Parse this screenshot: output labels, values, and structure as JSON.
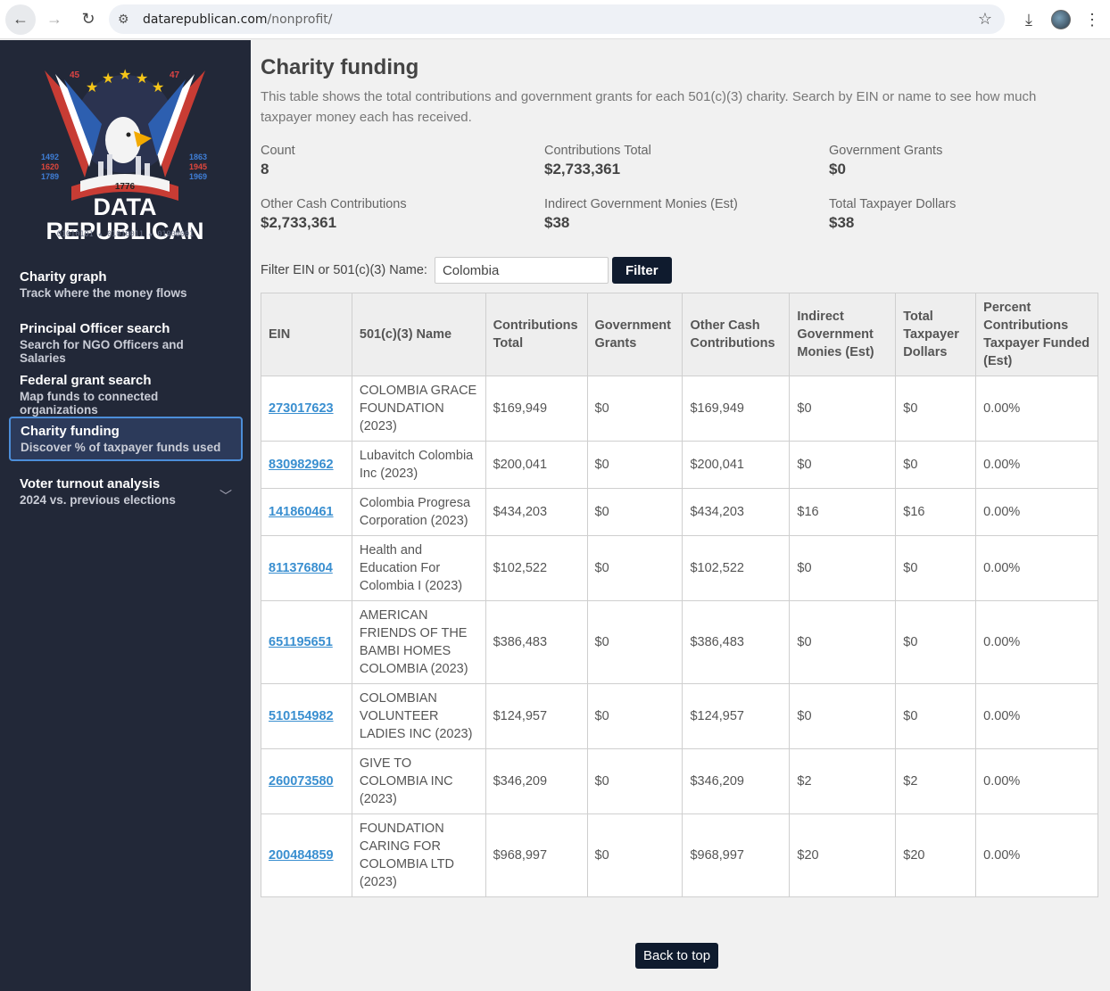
{
  "browser": {
    "url_domain": "datarepublican.com",
    "url_path": "/nonprofit/"
  },
  "logo": {
    "top_left_num": "45",
    "top_right_num": "47",
    "left_years": [
      "1492",
      "1620",
      "1789"
    ],
    "right_years": [
      "1863",
      "1945",
      "1969"
    ],
    "banner_year": "1776",
    "line1": "DATA",
    "line2": "REPUBLICAN",
    "binary": "01010101 ★ 01010011 ★ 01000001"
  },
  "sidebar": {
    "items": [
      {
        "title": "Charity graph",
        "subtitle": "Track where the money flows"
      },
      {
        "title": "Principal Officer search",
        "subtitle": "Search for NGO Officers and Salaries"
      },
      {
        "title": "Federal grant search",
        "subtitle": "Map funds to connected organizations"
      },
      {
        "title": "Charity funding",
        "subtitle": "Discover % of taxpayer funds used"
      },
      {
        "title": "Voter turnout analysis",
        "subtitle": "2024 vs. previous elections"
      }
    ]
  },
  "main": {
    "title": "Charity funding",
    "description": "This table shows the total contributions and government grants for each 501(c)(3) charity. Search by EIN or name to see how much taxpayer money each has received.",
    "stats": [
      {
        "label": "Count",
        "value": "8"
      },
      {
        "label": "Contributions Total",
        "value": "$2,733,361"
      },
      {
        "label": "Government Grants",
        "value": "$0"
      },
      {
        "label": "Other Cash Contributions",
        "value": "$2,733,361"
      },
      {
        "label": "Indirect Government Monies (Est)",
        "value": "$38"
      },
      {
        "label": "Total Taxpayer Dollars",
        "value": "$38"
      }
    ],
    "filter_label": "Filter EIN or 501(c)(3) Name:",
    "filter_value": "Colombia",
    "filter_button": "Filter",
    "back_to_top": "Back to top"
  },
  "table": {
    "headers": [
      "EIN",
      "501(c)(3) Name",
      "Contributions Total",
      "Government Grants",
      "Other Cash Contributions",
      "Indirect Government Monies (Est)",
      "Total Taxpayer Dollars",
      "Percent Contributions Taxpayer Funded (Est)"
    ],
    "rows": [
      [
        "273017623",
        "COLOMBIA GRACE FOUNDATION (2023)",
        "$169,949",
        "$0",
        "$169,949",
        "$0",
        "$0",
        "0.00%"
      ],
      [
        "830982962",
        "Lubavitch Colombia Inc (2023)",
        "$200,041",
        "$0",
        "$200,041",
        "$0",
        "$0",
        "0.00%"
      ],
      [
        "141860461",
        "Colombia Progresa Corporation (2023)",
        "$434,203",
        "$0",
        "$434,203",
        "$16",
        "$16",
        "0.00%"
      ],
      [
        "811376804",
        "Health and Education For Colombia I (2023)",
        "$102,522",
        "$0",
        "$102,522",
        "$0",
        "$0",
        "0.00%"
      ],
      [
        "651195651",
        "AMERICAN FRIENDS OF THE BAMBI HOMES COLOMBIA (2023)",
        "$386,483",
        "$0",
        "$386,483",
        "$0",
        "$0",
        "0.00%"
      ],
      [
        "510154982",
        "COLOMBIAN VOLUNTEER LADIES INC (2023)",
        "$124,957",
        "$0",
        "$124,957",
        "$0",
        "$0",
        "0.00%"
      ],
      [
        "260073580",
        "GIVE TO COLOMBIA INC (2023)",
        "$346,209",
        "$0",
        "$346,209",
        "$2",
        "$2",
        "0.00%"
      ],
      [
        "200484859",
        "FOUNDATION CARING FOR COLOMBIA LTD (2023)",
        "$968,997",
        "$0",
        "$968,997",
        "$20",
        "$20",
        "0.00%"
      ]
    ]
  }
}
